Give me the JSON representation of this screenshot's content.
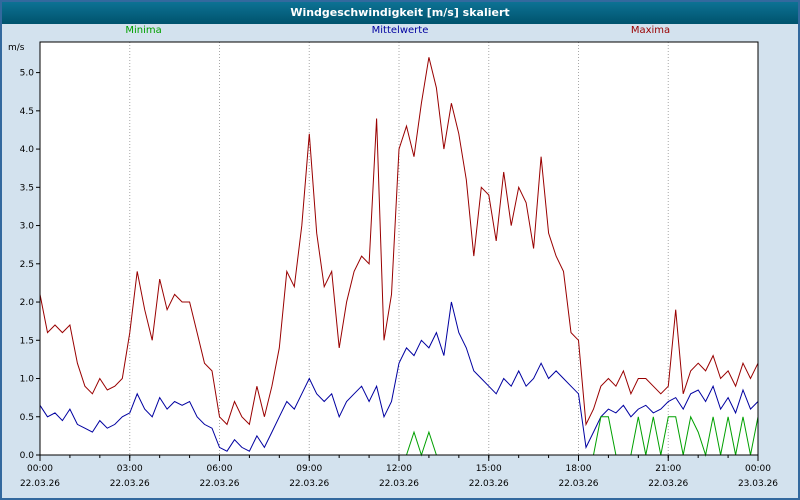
{
  "title_bar": {
    "title": "Windgeschwindigkeit [m/s] skaliert"
  },
  "legend": {
    "minima": "Minima",
    "mittelwerte": "Mittelwerte",
    "maxima": "Maxima"
  },
  "colors": {
    "minima": "#00a000",
    "mittelwerte": "#0000a0",
    "maxima": "#990000",
    "title_bg": "#00617e",
    "page_bg": "#d3e2ee",
    "plot_bg": "#ffffff",
    "grid": "#a8a8a8",
    "axis": "#000000"
  },
  "chart_data": {
    "type": "line",
    "title": "Windgeschwindigkeit [m/s] skaliert",
    "ylabel": "m/s",
    "ylim": [
      0,
      5.4
    ],
    "yticks": [
      "0.0",
      "0.5",
      "1.0",
      "1.5",
      "2.0",
      "2.5",
      "3.0",
      "3.5",
      "4.0",
      "4.5",
      "5.0"
    ],
    "x_step_minutes": 15,
    "grid": "vertical-dotted",
    "legend_position": "top",
    "xticks": [
      {
        "time": "00:00",
        "date": "22.03.26"
      },
      {
        "time": "03:00",
        "date": "22.03.26"
      },
      {
        "time": "06:00",
        "date": "22.03.26"
      },
      {
        "time": "09:00",
        "date": "22.03.26"
      },
      {
        "time": "12:00",
        "date": "22.03.26"
      },
      {
        "time": "15:00",
        "date": "22.03.26"
      },
      {
        "time": "18:00",
        "date": "22.03.26"
      },
      {
        "time": "21:00",
        "date": "22.03.26"
      },
      {
        "time": "00:00",
        "date": "23.03.26"
      }
    ],
    "series": [
      {
        "name": "Maxima",
        "color": "#990000",
        "values": [
          2.1,
          1.6,
          1.7,
          1.6,
          1.7,
          1.2,
          0.9,
          0.8,
          1.0,
          0.85,
          0.9,
          1.0,
          1.6,
          2.4,
          1.9,
          1.5,
          2.3,
          1.9,
          2.1,
          2.0,
          2.0,
          1.6,
          1.2,
          1.1,
          0.5,
          0.4,
          0.7,
          0.5,
          0.4,
          0.9,
          0.5,
          0.9,
          1.4,
          2.4,
          2.2,
          3.0,
          4.2,
          2.9,
          2.2,
          2.4,
          1.4,
          2.0,
          2.4,
          2.6,
          2.5,
          4.4,
          1.5,
          2.1,
          4.0,
          4.3,
          3.9,
          4.6,
          5.2,
          4.8,
          4.0,
          4.6,
          4.2,
          3.6,
          2.6,
          3.5,
          3.4,
          2.8,
          3.7,
          3.0,
          3.5,
          3.3,
          2.7,
          3.9,
          2.9,
          2.6,
          2.4,
          1.6,
          1.5,
          0.4,
          0.6,
          0.9,
          1.0,
          0.9,
          1.1,
          0.8,
          1.0,
          1.0,
          0.9,
          0.8,
          0.9,
          1.9,
          0.8,
          1.1,
          1.2,
          1.1,
          1.3,
          1.0,
          1.1,
          0.9,
          1.2,
          1.0,
          1.2
        ]
      },
      {
        "name": "Mittelwerte",
        "color": "#0000a0",
        "values": [
          0.65,
          0.5,
          0.55,
          0.45,
          0.6,
          0.4,
          0.35,
          0.3,
          0.45,
          0.35,
          0.4,
          0.5,
          0.55,
          0.8,
          0.6,
          0.5,
          0.75,
          0.6,
          0.7,
          0.65,
          0.7,
          0.5,
          0.4,
          0.35,
          0.1,
          0.05,
          0.2,
          0.1,
          0.05,
          0.25,
          0.1,
          0.3,
          0.5,
          0.7,
          0.6,
          0.8,
          1.0,
          0.8,
          0.7,
          0.8,
          0.5,
          0.7,
          0.8,
          0.9,
          0.7,
          0.9,
          0.5,
          0.7,
          1.2,
          1.4,
          1.3,
          1.5,
          1.4,
          1.6,
          1.3,
          2.0,
          1.6,
          1.4,
          1.1,
          1.0,
          0.9,
          0.8,
          1.0,
          0.9,
          1.1,
          0.9,
          1.0,
          1.2,
          1.0,
          1.1,
          1.0,
          0.9,
          0.8,
          0.1,
          0.3,
          0.5,
          0.6,
          0.55,
          0.65,
          0.5,
          0.6,
          0.65,
          0.55,
          0.6,
          0.7,
          0.75,
          0.6,
          0.8,
          0.85,
          0.7,
          0.9,
          0.6,
          0.75,
          0.55,
          0.85,
          0.6,
          0.7
        ]
      },
      {
        "name": "Minima",
        "color": "#00a000",
        "values": [
          0,
          0,
          0,
          0,
          0,
          0,
          0,
          0,
          0,
          0,
          0,
          0,
          0,
          0,
          0,
          0,
          0,
          0,
          0,
          0,
          0,
          0,
          0,
          0,
          0,
          0,
          0,
          0,
          0,
          0,
          0,
          0,
          0,
          0,
          0,
          0,
          0,
          0,
          0,
          0,
          0,
          0,
          0,
          0,
          0,
          0,
          0,
          0,
          0,
          0,
          0.3,
          0,
          0.3,
          0,
          0,
          0,
          0,
          0,
          0,
          0,
          0,
          0,
          0,
          0,
          0,
          0,
          0,
          0,
          0,
          0,
          0,
          0,
          0,
          0,
          0,
          0.5,
          0.5,
          0,
          0,
          0,
          0.5,
          0,
          0.5,
          0,
          0.5,
          0.5,
          0,
          0.5,
          0.3,
          0,
          0.5,
          0,
          0.5,
          0,
          0.5,
          0,
          0.5
        ]
      }
    ]
  }
}
